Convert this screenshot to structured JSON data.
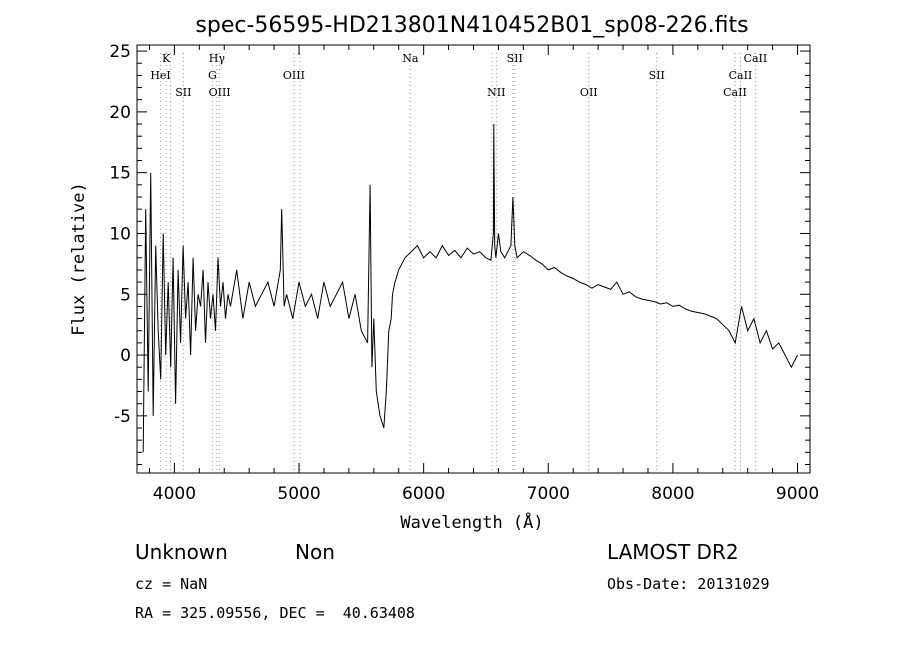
{
  "chart_data": {
    "type": "line",
    "title": "spec-56595-HD213801N410452B01_sp08-226.fits",
    "xlabel": "Wavelength (Å)",
    "ylabel": "Flux (relative)",
    "xlim": [
      3700,
      9100
    ],
    "ylim": [
      -9.7,
      25.5
    ],
    "x_ticks": [
      4000,
      5000,
      6000,
      7000,
      8000,
      9000
    ],
    "y_ticks": [
      -5,
      0,
      5,
      10,
      15,
      20,
      25
    ],
    "grid": false,
    "series": [
      {
        "x": [
          3750,
          3770,
          3790,
          3810,
          3830,
          3850,
          3870,
          3890,
          3910,
          3930,
          3950,
          3970,
          3990,
          4010,
          4030,
          4050,
          4070,
          4090,
          4110,
          4130,
          4150,
          4170,
          4190,
          4210,
          4230,
          4250,
          4270,
          4290,
          4310,
          4330,
          4350,
          4370,
          4390,
          4410,
          4430,
          4450,
          4500,
          4550,
          4600,
          4650,
          4700,
          4750,
          4800,
          4850,
          4861,
          4880,
          4900,
          4950,
          5000,
          5050,
          5100,
          5150,
          5200,
          5250,
          5300,
          5350,
          5400,
          5450,
          5500,
          5550,
          5570,
          5585,
          5600,
          5620,
          5650,
          5680,
          5700,
          5720,
          5740,
          5750,
          5770,
          5800,
          5850,
          5900,
          5950,
          6000,
          6050,
          6100,
          6150,
          6200,
          6250,
          6300,
          6350,
          6400,
          6450,
          6500,
          6540,
          6560,
          6563,
          6570,
          6580,
          6600,
          6620,
          6650,
          6700,
          6716,
          6731,
          6750,
          6800,
          6850,
          6900,
          6950,
          7000,
          7050,
          7100,
          7150,
          7200,
          7250,
          7300,
          7350,
          7400,
          7450,
          7500,
          7550,
          7600,
          7650,
          7700,
          7750,
          7800,
          7850,
          7900,
          7950,
          8000,
          8050,
          8100,
          8150,
          8200,
          8250,
          8300,
          8350,
          8400,
          8450,
          8500,
          8550,
          8600,
          8650,
          8700,
          8750,
          8800,
          8850,
          8900,
          8950,
          9000
        ],
        "y": [
          -8,
          12,
          -3,
          15,
          -5,
          9,
          2,
          -2,
          10,
          0,
          6,
          -1,
          8,
          -4,
          7,
          1,
          9,
          3,
          6,
          0,
          8,
          2,
          5,
          4,
          7,
          1,
          6,
          3,
          5,
          2,
          8,
          4,
          6,
          3,
          5,
          4,
          7,
          3,
          6,
          4,
          5,
          6,
          4,
          7,
          12,
          4,
          5,
          3,
          6,
          4,
          5,
          3,
          6,
          4,
          5,
          6,
          3,
          5,
          2,
          1,
          14,
          -1,
          3,
          -3,
          -5,
          -6,
          -3,
          2,
          3,
          5,
          6,
          7,
          8,
          8.5,
          9,
          8,
          8.5,
          8,
          9,
          8.2,
          8.6,
          8,
          8.8,
          8.3,
          8.5,
          8,
          7.8,
          10,
          19,
          9,
          8,
          10,
          8.5,
          8,
          9,
          13,
          9,
          8,
          8.5,
          8.2,
          7.8,
          7.5,
          7,
          7.2,
          6.8,
          6.5,
          6.3,
          6,
          5.8,
          5.5,
          5.8,
          5.6,
          5.4,
          6,
          5,
          5.2,
          4.8,
          4.6,
          4.5,
          4.4,
          4.2,
          4.3,
          4,
          4.1,
          3.8,
          3.6,
          3.5,
          3.4,
          3.2,
          3,
          2.5,
          2,
          1,
          4,
          2,
          3,
          1,
          2,
          0.5,
          1,
          0,
          -1,
          0
        ]
      }
    ],
    "line_labels": [
      {
        "name": "K",
        "wave": 3934,
        "row": 0
      },
      {
        "name": "HeI",
        "wave": 3889,
        "row": 1
      },
      {
        "name": "SII",
        "wave": 4072,
        "row": 2
      },
      {
        "name": "Hγ",
        "wave": 4341,
        "row": 0
      },
      {
        "name": "G",
        "wave": 4305,
        "row": 1
      },
      {
        "name": "OIII",
        "wave": 4363,
        "row": 2
      },
      {
        "name": "OIII",
        "wave": 4959,
        "row": 1
      },
      {
        "name": "Na",
        "wave": 5893,
        "row": 0
      },
      {
        "name": "NII",
        "wave": 6583,
        "row": 2
      },
      {
        "name": "SII",
        "wave": 6731,
        "row": 0
      },
      {
        "name": "OII",
        "wave": 7325,
        "row": 2
      },
      {
        "name": "SII",
        "wave": 7870,
        "row": 1
      },
      {
        "name": "CaII",
        "wave": 8662,
        "row": 0
      },
      {
        "name": "CaII",
        "wave": 8542,
        "row": 1
      },
      {
        "name": "CaII",
        "wave": 8498,
        "row": 2
      }
    ],
    "tick_markers": [
      3889,
      3934,
      3969,
      4072,
      4305,
      4341,
      4363,
      4959,
      5007,
      5893,
      6548,
      6583,
      6716,
      6731,
      7325,
      7870,
      8498,
      8542,
      8662
    ]
  },
  "info": {
    "class": "Unknown",
    "subclass": "Non",
    "survey": "LAMOST DR2",
    "cz": "cz = NaN",
    "obs_date": "Obs-Date: 20131029",
    "coords": "RA = 325.09556, DEC =  40.63408"
  }
}
